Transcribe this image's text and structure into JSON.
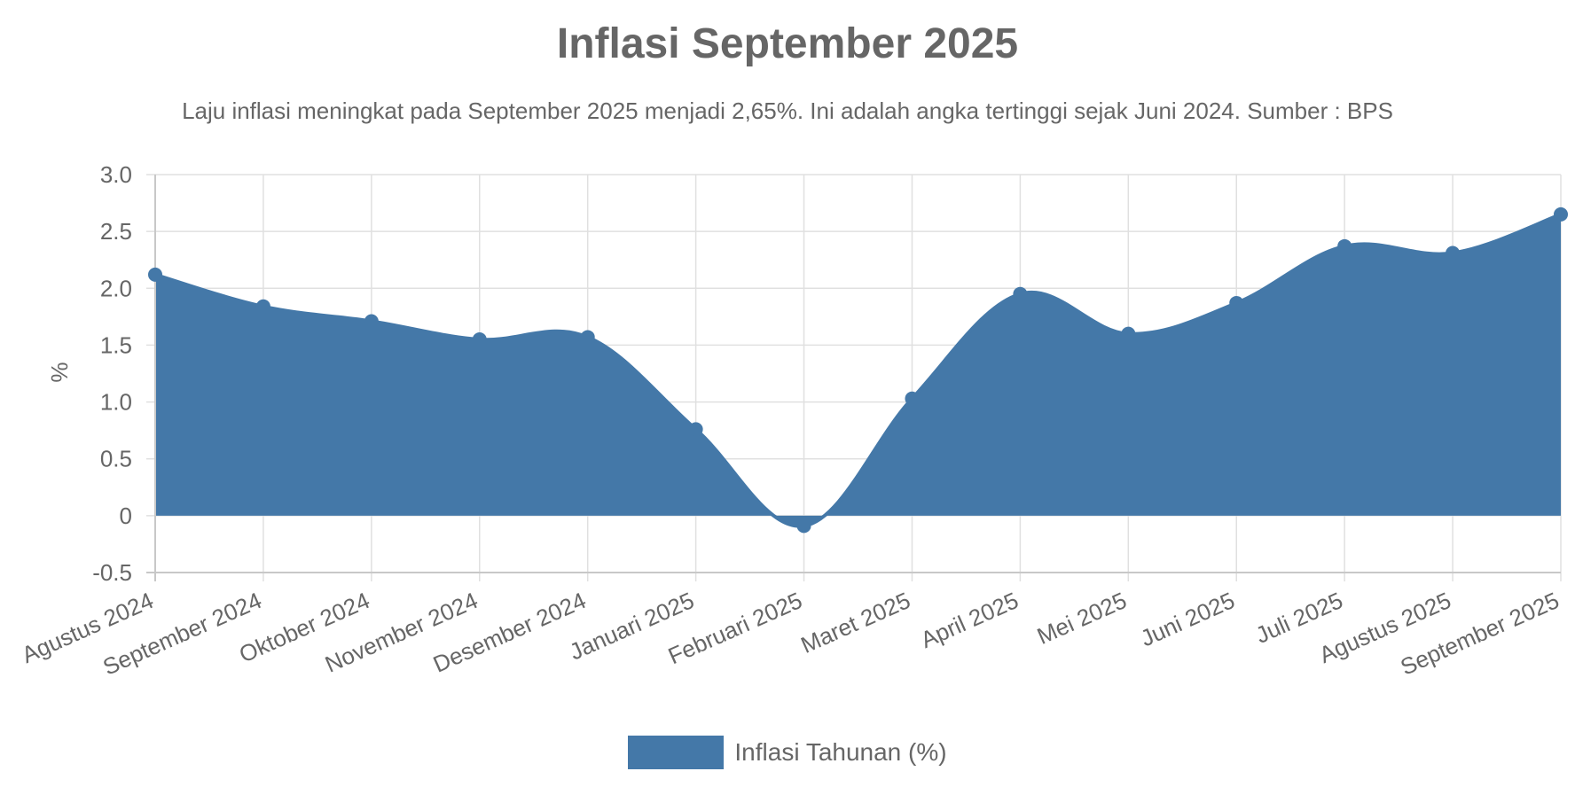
{
  "chart_data": {
    "type": "area",
    "title": "Inflasi September 2025",
    "subtitle": "Laju inflasi meningkat pada September 2025 menjadi 2,65%. Ini adalah angka tertinggi sejak Juni 2024. Sumber : BPS",
    "xlabel": "",
    "ylabel": "%",
    "ylim": [
      -0.5,
      3.0
    ],
    "yticks": [
      "3.0",
      "2.5",
      "2.0",
      "1.5",
      "1.0",
      "0.5",
      "0",
      "-0.5"
    ],
    "ytick_values": [
      3.0,
      2.5,
      2.0,
      1.5,
      1.0,
      0.5,
      0,
      -0.5
    ],
    "grid": true,
    "legend_position": "bottom",
    "categories": [
      "Agustus 2024",
      "September 2024",
      "Oktober 2024",
      "November 2024",
      "Desember 2024",
      "Januari 2025",
      "Februari 2025",
      "Maret 2025",
      "April 2025",
      "Mei 2025",
      "Juni 2025",
      "Juli 2025",
      "Agustus 2025",
      "September 2025"
    ],
    "series": [
      {
        "name": "Inflasi Tahunan (%)",
        "color": "#4478a8",
        "values": [
          2.12,
          1.84,
          1.71,
          1.55,
          1.57,
          0.76,
          -0.09,
          1.03,
          1.95,
          1.6,
          1.87,
          2.37,
          2.31,
          2.65
        ]
      }
    ]
  }
}
